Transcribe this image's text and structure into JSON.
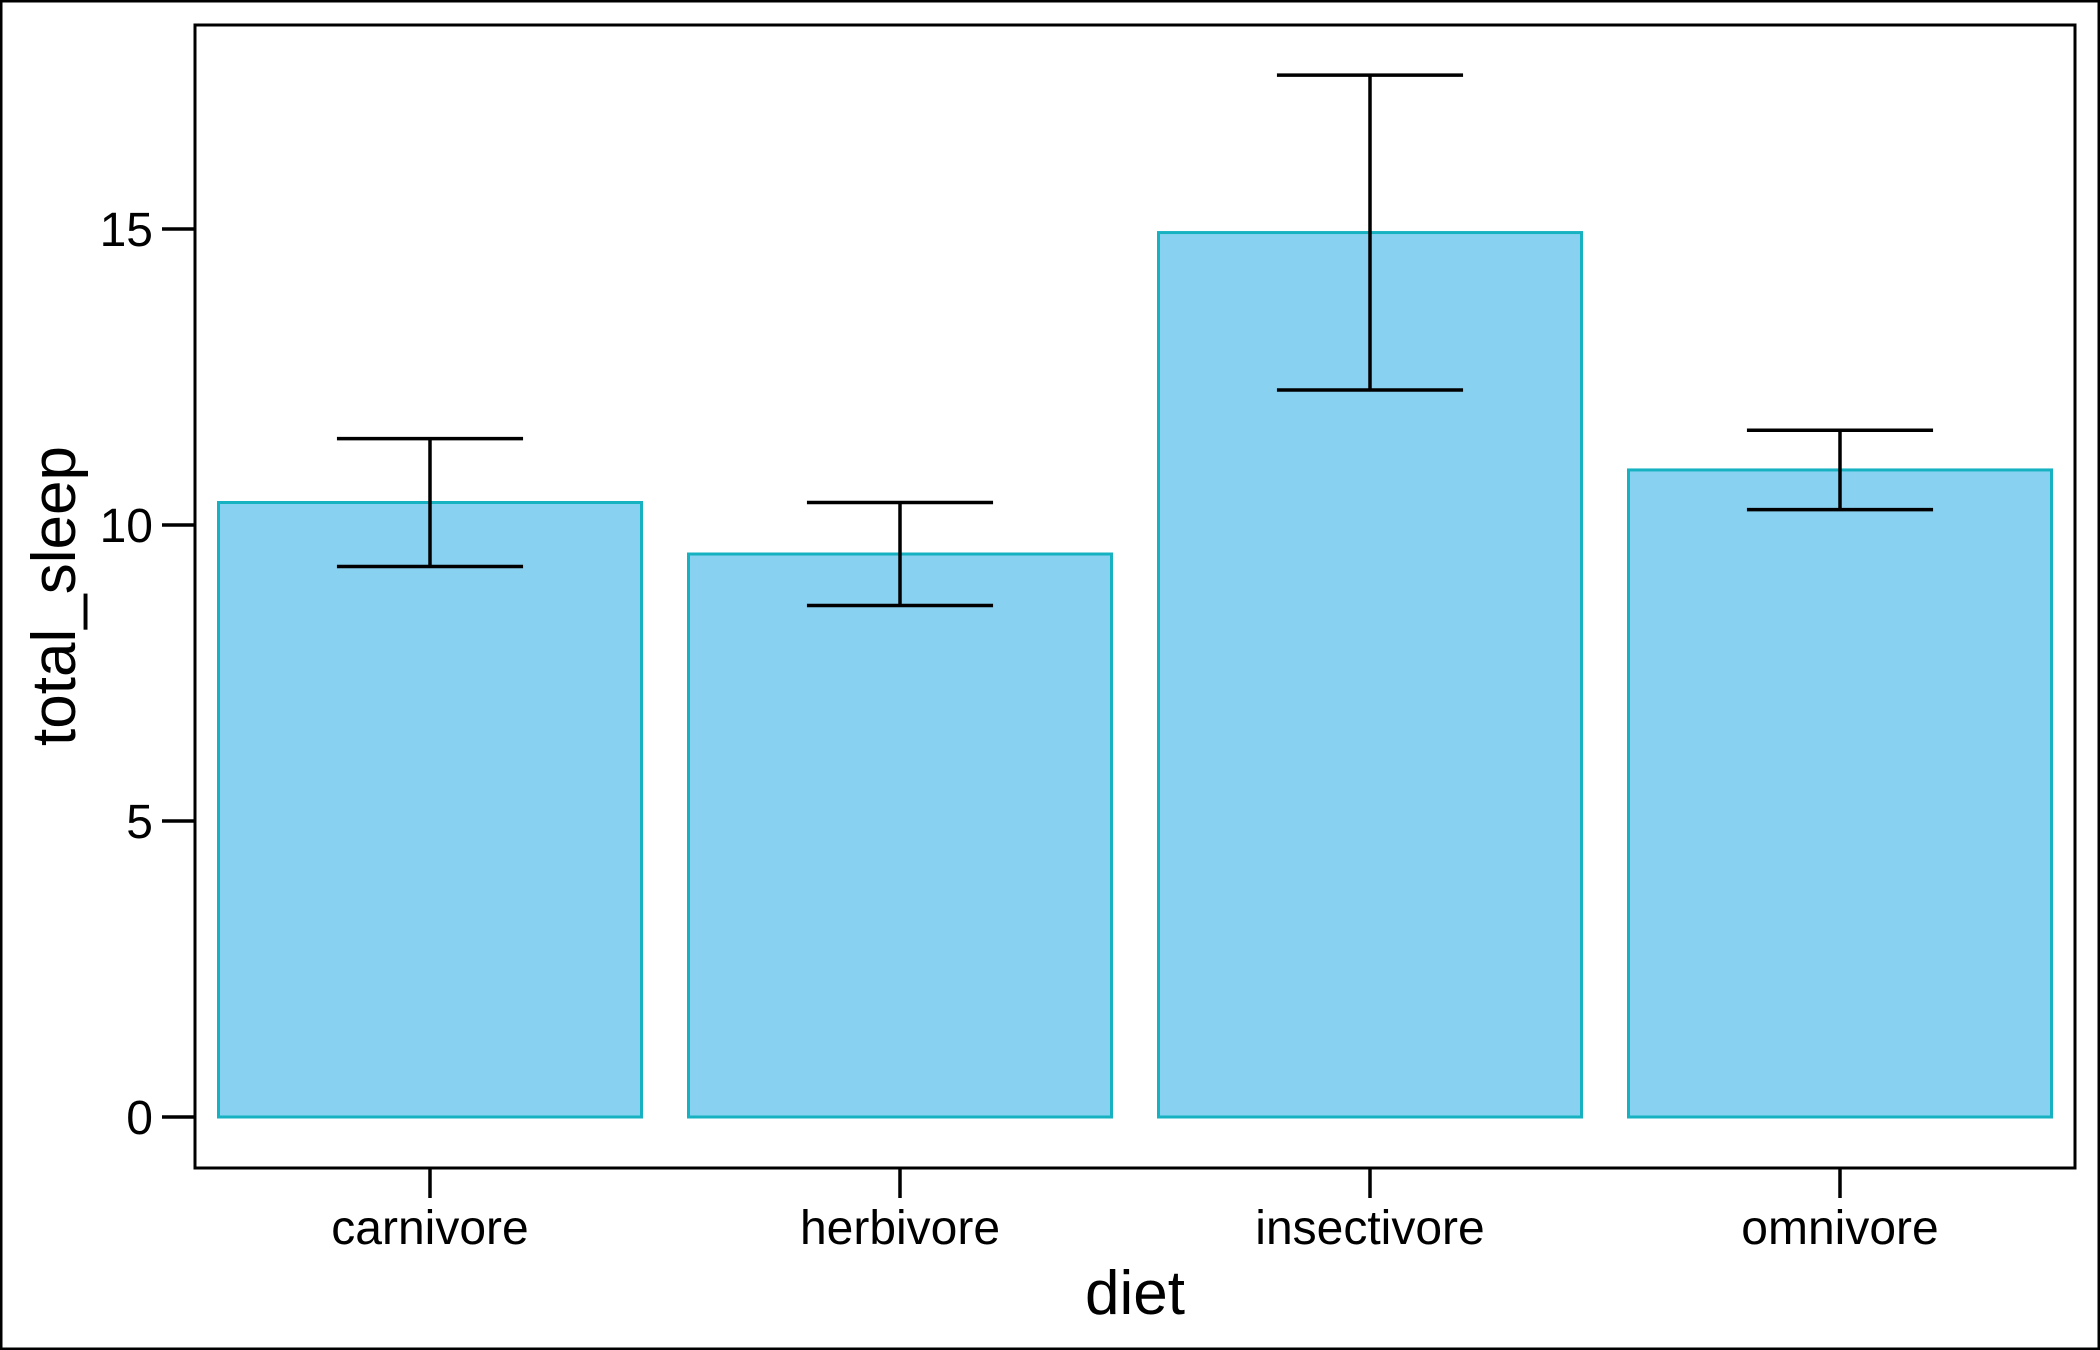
{
  "chart_data": {
    "type": "bar",
    "title": "",
    "xlabel": "diet",
    "ylabel": "total_sleep",
    "categories": [
      "carnivore",
      "herbivore",
      "insectivore",
      "omnivore"
    ],
    "values": [
      10.38,
      9.51,
      14.94,
      10.93
    ],
    "error_bars": [
      {
        "lower": 9.3,
        "upper": 11.46
      },
      {
        "lower": 8.64,
        "upper": 10.38
      },
      {
        "lower": 12.28,
        "upper": 17.6
      },
      {
        "lower": 10.26,
        "upper": 11.6
      }
    ],
    "yticks": [
      0,
      5,
      10,
      15
    ],
    "ylim": [
      -0.87,
      18.47
    ],
    "grid": false,
    "bar_fill": "#89d1f0",
    "bar_stroke": "#17b2c2",
    "error_color": "#000000"
  }
}
